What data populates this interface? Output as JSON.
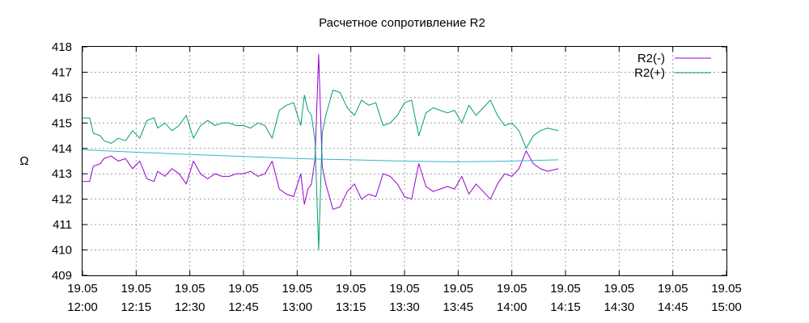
{
  "chart_data": {
    "type": "line",
    "title": "Расчетное сопротивление R2",
    "ylabel": "Ω",
    "xlabel": "",
    "ylim": [
      409,
      418
    ],
    "y_ticks": [
      "409",
      "410",
      "411",
      "412",
      "413",
      "414",
      "415",
      "416",
      "417",
      "418"
    ],
    "x_ticks": [
      {
        "date": "19.05",
        "time": "12:00"
      },
      {
        "date": "19.05",
        "time": "12:15"
      },
      {
        "date": "19.05",
        "time": "12:30"
      },
      {
        "date": "19.05",
        "time": "12:45"
      },
      {
        "date": "19.05",
        "time": "13:00"
      },
      {
        "date": "19.05",
        "time": "13:15"
      },
      {
        "date": "19.05",
        "time": "13:30"
      },
      {
        "date": "19.05",
        "time": "13:45"
      },
      {
        "date": "19.05",
        "time": "14:00"
      },
      {
        "date": "19.05",
        "time": "14:15"
      },
      {
        "date": "19.05",
        "time": "14:30"
      },
      {
        "date": "19.05",
        "time": "14:45"
      },
      {
        "date": "19.05",
        "time": "15:00"
      }
    ],
    "xlim": [
      "19.05 12:00",
      "19.05 15:00"
    ],
    "grid": true,
    "legend_position": "top-right",
    "series": [
      {
        "name": "R2(-)",
        "color": "#9400d3",
        "x": [
          "12:00",
          "12:02",
          "12:03",
          "12:05",
          "12:06",
          "12:08",
          "12:10",
          "12:12",
          "12:14",
          "12:16",
          "12:18",
          "12:20",
          "12:21",
          "12:23",
          "12:25",
          "12:27",
          "12:29",
          "12:31",
          "12:33",
          "12:35",
          "12:37",
          "12:39",
          "12:41",
          "12:43",
          "12:45",
          "12:47",
          "12:49",
          "12:51",
          "12:53",
          "12:55",
          "12:57",
          "12:59",
          "13:01",
          "13:02",
          "13:03",
          "13:04",
          "13:05",
          "13:06",
          "13:07",
          "13:08",
          "13:10",
          "13:12",
          "13:14",
          "13:16",
          "13:18",
          "13:20",
          "13:22",
          "13:24",
          "13:26",
          "13:28",
          "13:30",
          "13:32",
          "13:34",
          "13:36",
          "13:38",
          "13:40",
          "13:42",
          "13:44",
          "13:46",
          "13:48",
          "13:50",
          "13:52",
          "13:54",
          "13:56",
          "13:58",
          "14:00",
          "14:02",
          "14:04",
          "14:06",
          "14:08",
          "14:10",
          "14:13"
        ],
        "y": [
          412.7,
          412.7,
          413.3,
          413.4,
          413.6,
          413.7,
          413.5,
          413.6,
          413.2,
          413.5,
          412.8,
          412.7,
          413.1,
          412.9,
          413.2,
          413.0,
          412.6,
          413.5,
          413.0,
          412.8,
          413.0,
          412.9,
          412.9,
          413.0,
          413.0,
          413.1,
          412.9,
          413.0,
          413.5,
          412.4,
          412.2,
          412.1,
          413.0,
          411.8,
          412.4,
          412.6,
          413.6,
          417.7,
          413.3,
          412.6,
          411.6,
          411.7,
          412.3,
          412.6,
          412.0,
          412.2,
          412.1,
          413.0,
          412.9,
          412.6,
          412.1,
          412.0,
          413.4,
          412.5,
          412.3,
          412.4,
          412.5,
          412.4,
          412.9,
          412.2,
          412.6,
          412.3,
          412.0,
          412.6,
          413.0,
          412.9,
          413.2,
          413.9,
          413.4,
          413.2,
          413.1,
          413.2
        ]
      },
      {
        "name": "R2(+)",
        "color": "#009e73",
        "x": [
          "12:00",
          "12:02",
          "12:03",
          "12:05",
          "12:06",
          "12:08",
          "12:10",
          "12:12",
          "12:14",
          "12:16",
          "12:18",
          "12:20",
          "12:21",
          "12:23",
          "12:25",
          "12:27",
          "12:29",
          "12:31",
          "12:33",
          "12:35",
          "12:37",
          "12:39",
          "12:41",
          "12:43",
          "12:45",
          "12:47",
          "12:49",
          "12:51",
          "12:53",
          "12:55",
          "12:57",
          "12:59",
          "13:01",
          "13:02",
          "13:03",
          "13:04",
          "13:05",
          "13:06",
          "13:07",
          "13:08",
          "13:10",
          "13:12",
          "13:14",
          "13:16",
          "13:18",
          "13:20",
          "13:22",
          "13:24",
          "13:26",
          "13:28",
          "13:30",
          "13:32",
          "13:34",
          "13:36",
          "13:38",
          "13:40",
          "13:42",
          "13:44",
          "13:46",
          "13:48",
          "13:50",
          "13:52",
          "13:54",
          "13:56",
          "13:58",
          "14:00",
          "14:02",
          "14:04",
          "14:06",
          "14:08",
          "14:10",
          "14:13"
        ],
        "y": [
          415.2,
          415.2,
          414.6,
          414.5,
          414.3,
          414.2,
          414.4,
          414.3,
          414.7,
          414.4,
          415.1,
          415.2,
          414.8,
          415.0,
          414.7,
          414.9,
          415.3,
          414.4,
          414.9,
          415.1,
          414.9,
          415.0,
          415.0,
          414.9,
          414.9,
          414.8,
          415.0,
          414.9,
          414.4,
          415.5,
          415.7,
          415.8,
          414.9,
          416.1,
          415.5,
          415.3,
          414.3,
          410.0,
          414.6,
          415.3,
          416.3,
          416.2,
          415.6,
          415.3,
          415.9,
          415.7,
          415.8,
          414.9,
          415.0,
          415.3,
          415.8,
          415.9,
          414.5,
          415.4,
          415.6,
          415.5,
          415.4,
          415.5,
          415.0,
          415.7,
          415.3,
          415.6,
          415.9,
          415.3,
          414.9,
          415.0,
          414.7,
          414.0,
          414.5,
          414.7,
          414.8,
          414.7
        ]
      },
      {
        "name": "",
        "color": "#33b5cc",
        "x": [
          "12:00",
          "12:15",
          "12:30",
          "12:45",
          "13:00",
          "13:15",
          "13:30",
          "13:45",
          "14:00",
          "14:13"
        ],
        "y": [
          413.95,
          413.85,
          413.76,
          413.68,
          413.6,
          413.55,
          413.5,
          413.47,
          413.5,
          413.55
        ]
      }
    ]
  }
}
